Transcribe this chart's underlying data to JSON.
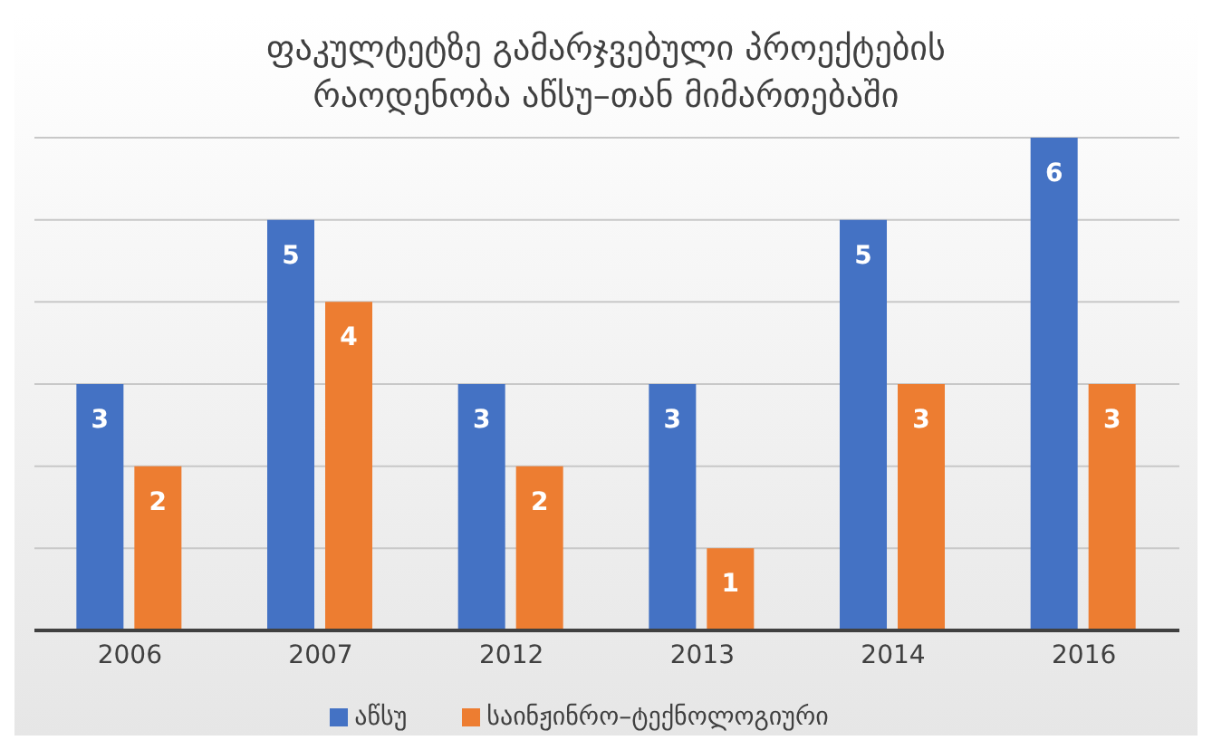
{
  "chart_data": {
    "type": "bar",
    "title": "ფაკულტეტზე გამარჯვებული პროექტების რაოდენობა აწსუ–თან მიმართებაში",
    "categories": [
      "2006",
      "2007",
      "2012",
      "2013",
      "2014",
      "2016"
    ],
    "series": [
      {
        "name": "აწსუ",
        "color": "#4472c4",
        "values": [
          3,
          5,
          3,
          3,
          5,
          6
        ]
      },
      {
        "name": "საინჟინრო–ტექნოლოგიური",
        "color": "#ed7d31",
        "values": [
          2,
          4,
          2,
          1,
          3,
          3
        ]
      }
    ],
    "ylim": [
      0,
      6
    ],
    "yticks": [
      {
        "value": 0,
        "label": null
      },
      {
        "value": 1,
        "label": null
      },
      {
        "value": 2,
        "label": null
      },
      {
        "value": 3,
        "label": null
      },
      {
        "value": 4,
        "label": null
      },
      {
        "value": 5,
        "label": null
      },
      {
        "value": 6,
        "label": null
      }
    ],
    "tick_labels": "x",
    "grid": "y",
    "data_labels": true,
    "legend": "bottom"
  }
}
